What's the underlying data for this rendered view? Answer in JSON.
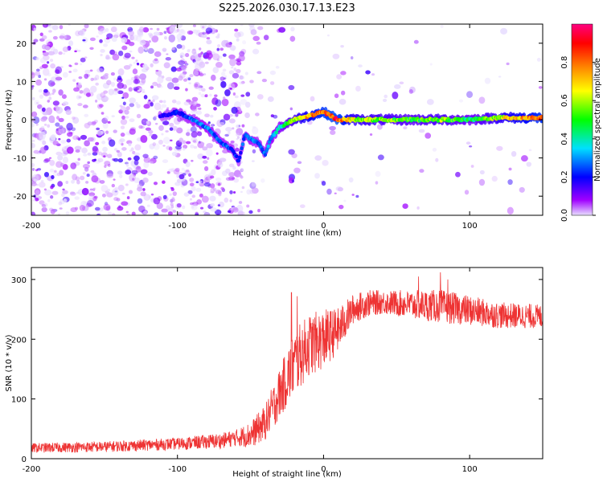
{
  "title": "S225.2026.030.17.13.E23",
  "chart_data": [
    {
      "type": "heatmap",
      "name": "spectrogram",
      "xlabel": "Height of straight line (km)",
      "ylabel": "Frequency (Hz)",
      "xlim": [
        -200,
        150
      ],
      "ylim": [
        -25,
        25
      ],
      "x_ticks": [
        -200,
        -100,
        0,
        100
      ],
      "y_ticks": [
        -20,
        -10,
        0,
        10,
        20
      ],
      "colorbar": {
        "label": "Normalized spectral amplitude",
        "range": [
          0,
          1
        ],
        "ticks": [
          0,
          0.2,
          0.4,
          0.6,
          0.8
        ],
        "colormap": [
          "#e8e0ff",
          "#a000ff",
          "#0000ff",
          "#00e0ff",
          "#00ff00",
          "#ffff00",
          "#ff8000",
          "#ff0000",
          "#ff0080"
        ]
      },
      "ridge": {
        "x": [
          -110,
          -100,
          -90,
          -80,
          -70,
          -62,
          -58,
          -54,
          -50,
          -45,
          -40,
          -36,
          -30,
          -20,
          -10,
          0,
          10,
          20,
          40,
          60,
          80,
          100,
          120,
          150
        ],
        "y": [
          1,
          2,
          0,
          -2,
          -6,
          -8,
          -11,
          -4,
          -5,
          -6,
          -9,
          -5,
          -2,
          0,
          1,
          2,
          0,
          0,
          0,
          0,
          0,
          0,
          0.5,
          0.5
        ],
        "amplitude": [
          0.2,
          0.25,
          0.3,
          0.32,
          0.3,
          0.28,
          0.25,
          0.3,
          0.32,
          0.3,
          0.3,
          0.35,
          0.4,
          0.55,
          0.7,
          0.8,
          0.85,
          0.6,
          0.55,
          0.5,
          0.55,
          0.45,
          0.6,
          0.8
        ]
      }
    },
    {
      "type": "line",
      "name": "snr",
      "xlabel": "Height of straight line (km)",
      "ylabel": "SNR (10 * v/v)",
      "xlim": [
        -200,
        150
      ],
      "ylim": [
        0,
        320
      ],
      "x_ticks": [
        -200,
        -100,
        0,
        100
      ],
      "y_ticks": [
        0,
        100,
        200,
        300
      ],
      "color": "#ee3333",
      "trend": {
        "x": [
          -200,
          -150,
          -100,
          -70,
          -50,
          -40,
          -30,
          -20,
          -10,
          0,
          10,
          20,
          30,
          40,
          60,
          80,
          100,
          120,
          150
        ],
        "y": [
          18,
          20,
          25,
          30,
          40,
          60,
          110,
          160,
          190,
          200,
          215,
          250,
          260,
          262,
          258,
          255,
          248,
          240,
          238
        ]
      },
      "noise": {
        "x": [
          -200,
          -100,
          -60,
          -40,
          -20,
          0,
          20,
          40,
          80,
          120,
          150
        ],
        "amplitude": [
          8,
          10,
          14,
          30,
          55,
          50,
          25,
          20,
          28,
          22,
          20
        ]
      },
      "peak_spikes": [
        {
          "x": -22,
          "y": 278
        },
        {
          "x": -18,
          "y": 272
        },
        {
          "x": 80,
          "y": 312
        },
        {
          "x": 65,
          "y": 305
        },
        {
          "x": 85,
          "y": 300
        }
      ]
    }
  ]
}
